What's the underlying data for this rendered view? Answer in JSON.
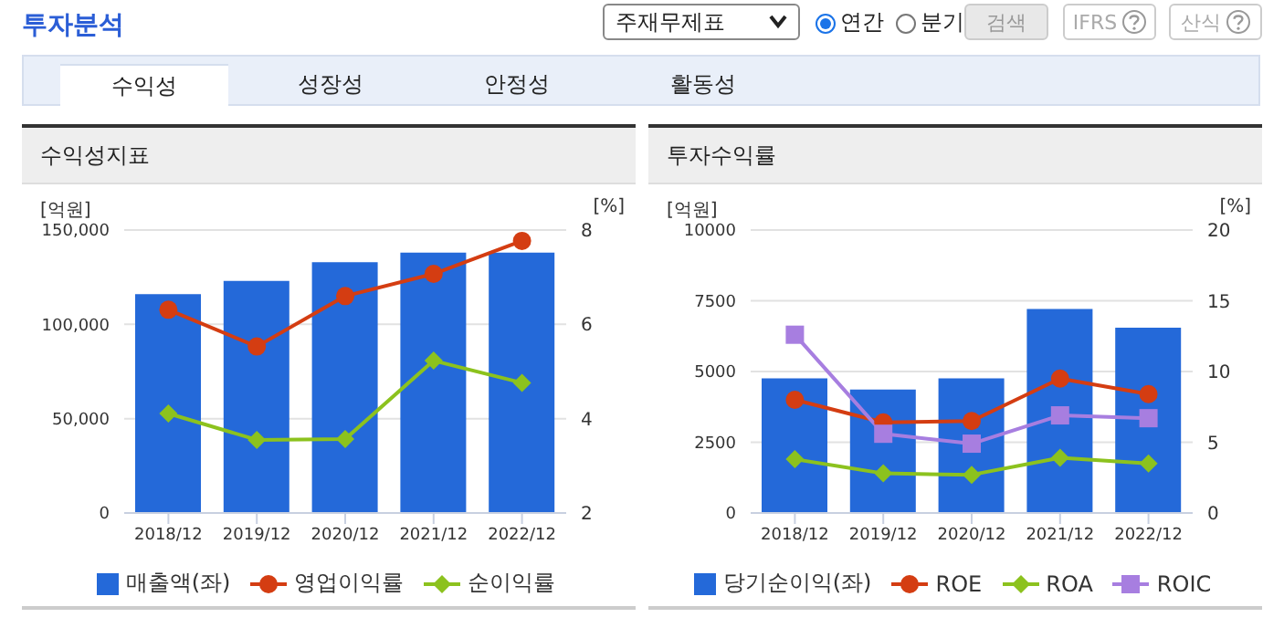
{
  "chart_data": [
    {
      "type": "other",
      "title": "투자분석",
      "annotations": [
        "주재무제표",
        "연간",
        "분기",
        "검색",
        "IFRS",
        "산식",
        "수익성",
        "성장성",
        "안정성",
        "활동성"
      ]
    },
    {
      "type": "bar",
      "title": "수익성지표",
      "ylabel": "[억원]",
      "y2label": "[%]",
      "categories": [
        "2018/12",
        "2019/12",
        "2020/12",
        "2021/12",
        "2022/12"
      ],
      "series": [
        {
          "name": "매출액(좌)",
          "type": "bar",
          "color": "#2469d9",
          "values": [
            116000,
            123000,
            133000,
            138000,
            138000
          ]
        },
        {
          "name": "영업이익률",
          "type": "line",
          "axis": "y2",
          "marker": "circle",
          "color": "#d43d12",
          "values": [
            6.31,
            5.53,
            6.6,
            7.07,
            7.77
          ]
        },
        {
          "name": "순이익률",
          "type": "line",
          "axis": "y2",
          "marker": "diamond",
          "color": "#8cc21e",
          "values": [
            4.11,
            3.55,
            3.57,
            5.23,
            4.76
          ]
        }
      ],
      "ylim": [
        0,
        150000
      ],
      "yticks": [
        0,
        {
          "value": 50000,
          "label": "50,000"
        },
        {
          "value": 100000,
          "label": "100,000"
        },
        {
          "value": 150000,
          "label": "150,000"
        }
      ],
      "y2lim": [
        2,
        8
      ],
      "y2ticks": [
        2,
        4,
        6,
        8
      ],
      "grid": "y",
      "legend": "bottom",
      "line_style": "solid"
    },
    {
      "type": "bar",
      "title": "투자수익률",
      "ylabel": "[억원]",
      "y2label": "[%]",
      "categories": [
        "2018/12",
        "2019/12",
        "2020/12",
        "2021/12",
        "2022/12"
      ],
      "series": [
        {
          "name": "당기순이익(좌)",
          "type": "bar",
          "color": "#2469d9",
          "values": [
            4760,
            4360,
            4760,
            7210,
            6550
          ]
        },
        {
          "name": "ROE",
          "type": "line",
          "axis": "y2",
          "marker": "circle",
          "color": "#d43d12",
          "values": [
            8.0,
            6.4,
            6.5,
            9.5,
            8.4
          ]
        },
        {
          "name": "ROA",
          "type": "line",
          "axis": "y2",
          "marker": "diamond",
          "color": "#8cc21e",
          "values": [
            3.8,
            2.8,
            2.7,
            3.9,
            3.5
          ]
        },
        {
          "name": "ROIC",
          "type": "line",
          "axis": "y2",
          "marker": "square",
          "color": "#a77ee0",
          "values": [
            12.6,
            5.6,
            4.9,
            6.9,
            6.7
          ]
        }
      ],
      "ylim": [
        0,
        10000
      ],
      "yticks": [
        0,
        2500,
        5000,
        7500,
        10000
      ],
      "y2lim": [
        0,
        20
      ],
      "y2ticks": [
        0,
        5,
        10,
        15,
        20
      ],
      "grid": "y",
      "legend": "bottom",
      "line_style": "solid"
    }
  ]
}
